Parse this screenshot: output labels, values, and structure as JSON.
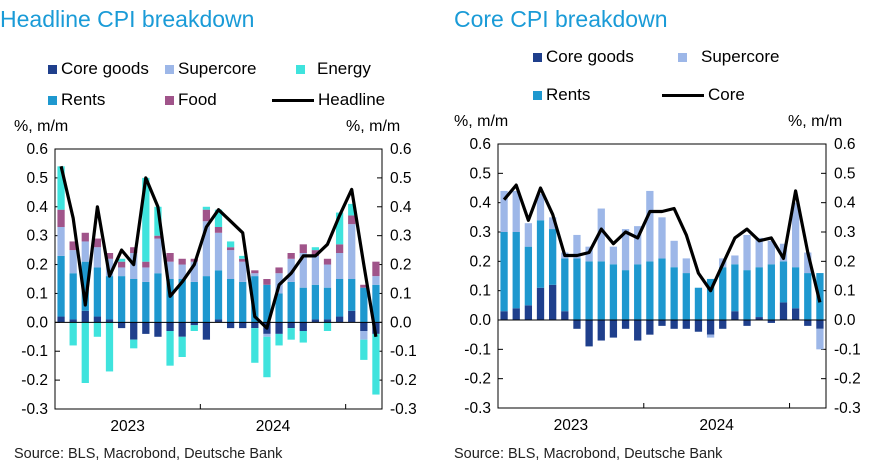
{
  "colors": {
    "title": "#1a9bd7",
    "core_goods": "#1f3f8c",
    "supercore": "#9db7e8",
    "energy": "#3fe3dd",
    "rents": "#1e98cf",
    "food": "#a0548a",
    "line": "#000000"
  },
  "chart_data": [
    {
      "type": "bar",
      "stacked": true,
      "title": "Headline CPI breakdown",
      "ylabel_left": "%, m/m",
      "ylabel_right": "%, m/m",
      "ylim": [
        -0.3,
        0.6
      ],
      "yticks": [
        "0.6",
        "0.5",
        "0.4",
        "0.3",
        "0.2",
        "0.1",
        "0.0",
        "-0.1",
        "-0.2",
        "-0.3"
      ],
      "xtick_labels": [
        {
          "label": "2023",
          "month_index": 6
        },
        {
          "label": "2024",
          "month_index": 18
        }
      ],
      "months": [
        "Jan-23",
        "Feb-23",
        "Mar-23",
        "Apr-23",
        "May-23",
        "Jun-23",
        "Jul-23",
        "Aug-23",
        "Sep-23",
        "Oct-23",
        "Nov-23",
        "Dec-23",
        "Jan-24",
        "Feb-24",
        "Mar-24",
        "Apr-24",
        "May-24",
        "Jun-24",
        "Jul-24",
        "Aug-24",
        "Sep-24",
        "Oct-24",
        "Nov-24",
        "Dec-24",
        "Jan-25",
        "Feb-25",
        "Mar-25"
      ],
      "legend": [
        "Core goods",
        "Supercore",
        "Energy",
        "Rents",
        "Food",
        "Headline"
      ],
      "series": [
        {
          "name": "Core goods",
          "key": "core_goods",
          "values": [
            0.02,
            0.01,
            0.04,
            0.02,
            0.01,
            -0.02,
            -0.06,
            -0.04,
            -0.05,
            -0.03,
            -0.05,
            -0.01,
            -0.06,
            0.01,
            -0.02,
            -0.02,
            -0.02,
            -0.04,
            -0.04,
            -0.02,
            -0.03,
            0.01,
            0.01,
            0.02,
            0.04,
            -0.03,
            -0.04
          ]
        },
        {
          "name": "Rents",
          "key": "rents",
          "values": [
            0.21,
            0.16,
            0.17,
            0.17,
            0.15,
            0.16,
            0.15,
            0.14,
            0.17,
            0.15,
            0.15,
            0.14,
            0.16,
            0.17,
            0.15,
            0.14,
            0.16,
            0.13,
            0.1,
            0.14,
            0.12,
            0.12,
            0.11,
            0.13,
            0.11,
            0.12,
            0.13
          ]
        },
        {
          "name": "Supercore",
          "key": "supercore",
          "values": [
            0.1,
            0.08,
            0.07,
            0.07,
            0.06,
            0.03,
            0.09,
            0.05,
            0.12,
            0.06,
            0.05,
            0.07,
            0.19,
            0.13,
            0.1,
            0.07,
            0.01,
            -0.01,
            0.07,
            0.08,
            0.12,
            0.1,
            0.08,
            0.09,
            0.19,
            -0.03,
            0.03
          ]
        },
        {
          "name": "Food",
          "key": "food",
          "values": [
            0.06,
            0.03,
            0.03,
            0.03,
            0.02,
            0.02,
            0.02,
            0.02,
            0.01,
            0.03,
            0.02,
            0.01,
            0.04,
            0.02,
            0.01,
            0.01,
            0.01,
            0.02,
            0.02,
            0.02,
            0.03,
            0.02,
            0.02,
            0.03,
            0.03,
            0.01,
            0.05
          ]
        },
        {
          "name": "Energy",
          "key": "energy",
          "values": [
            0.15,
            -0.08,
            -0.21,
            -0.05,
            -0.17,
            0.01,
            -0.03,
            0.29,
            0.1,
            -0.12,
            -0.07,
            -0.02,
            0.01,
            0.06,
            0.02,
            0.01,
            -0.12,
            -0.14,
            -0.04,
            -0.04,
            -0.04,
            0.01,
            -0.03,
            0.11,
            0.04,
            -0.07,
            -0.21
          ]
        }
      ],
      "line": {
        "name": "Headline",
        "values": [
          0.54,
          0.36,
          0.06,
          0.4,
          0.16,
          0.25,
          0.2,
          0.5,
          0.4,
          0.09,
          0.14,
          0.2,
          0.33,
          0.39,
          0.35,
          0.31,
          0.02,
          -0.02,
          0.13,
          0.17,
          0.23,
          0.23,
          0.27,
          0.37,
          0.46,
          0.2,
          -0.05
        ]
      }
    },
    {
      "type": "bar",
      "stacked": true,
      "title": "Core CPI breakdown",
      "ylabel_left": "%, m/m",
      "ylabel_right": "%, m/m",
      "ylim": [
        -0.3,
        0.6
      ],
      "yticks": [
        "0.6",
        "0.5",
        "0.4",
        "0.3",
        "0.2",
        "0.1",
        "0.0",
        "-0.1",
        "-0.2",
        "-0.3"
      ],
      "xtick_labels": [
        {
          "label": "2023",
          "month_index": 6
        },
        {
          "label": "2024",
          "month_index": 18
        }
      ],
      "months": [
        "Jan-23",
        "Feb-23",
        "Mar-23",
        "Apr-23",
        "May-23",
        "Jun-23",
        "Jul-23",
        "Aug-23",
        "Sep-23",
        "Oct-23",
        "Nov-23",
        "Dec-23",
        "Jan-24",
        "Feb-24",
        "Mar-24",
        "Apr-24",
        "May-24",
        "Jun-24",
        "Jul-24",
        "Aug-24",
        "Sep-24",
        "Oct-24",
        "Nov-24",
        "Dec-24",
        "Jan-25",
        "Feb-25",
        "Mar-25"
      ],
      "legend": [
        "Core goods",
        "Supercore",
        "Rents",
        "Core"
      ],
      "series": [
        {
          "name": "Core goods",
          "key": "core_goods",
          "values": [
            0.03,
            0.04,
            0.05,
            0.11,
            0.12,
            0.03,
            -0.03,
            -0.09,
            -0.07,
            -0.06,
            -0.03,
            -0.07,
            -0.05,
            -0.02,
            -0.03,
            -0.03,
            -0.04,
            -0.05,
            -0.03,
            0.03,
            -0.02,
            0.01,
            -0.01,
            0.06,
            0.04,
            -0.02,
            -0.03
          ]
        },
        {
          "name": "Rents",
          "key": "rents",
          "values": [
            0.27,
            0.26,
            0.2,
            0.23,
            0.19,
            0.18,
            0.21,
            0.2,
            0.2,
            0.19,
            0.17,
            0.19,
            0.2,
            0.21,
            0.18,
            0.16,
            0.11,
            0.14,
            0.18,
            0.16,
            0.17,
            0.17,
            0.19,
            0.14,
            0.14,
            0.16,
            0.16
          ]
        },
        {
          "name": "Supercore",
          "key": "supercore",
          "values": [
            0.14,
            0.14,
            0.08,
            0.09,
            0.04,
            0.02,
            0.08,
            0.05,
            0.18,
            0.06,
            0.14,
            0.13,
            0.24,
            0.14,
            0.09,
            0.05,
            0.0,
            -0.01,
            0.03,
            0.03,
            0.12,
            0.1,
            0.08,
            0.06,
            0.22,
            0.07,
            -0.07
          ]
        }
      ],
      "line": {
        "name": "Core",
        "values": [
          0.41,
          0.46,
          0.34,
          0.45,
          0.36,
          0.22,
          0.22,
          0.23,
          0.31,
          0.26,
          0.3,
          0.28,
          0.37,
          0.37,
          0.38,
          0.29,
          0.16,
          0.1,
          0.19,
          0.28,
          0.31,
          0.27,
          0.28,
          0.21,
          0.44,
          0.23,
          0.06
        ]
      }
    }
  ],
  "source": "Source: BLS, Macrobond, Deutsche Bank"
}
